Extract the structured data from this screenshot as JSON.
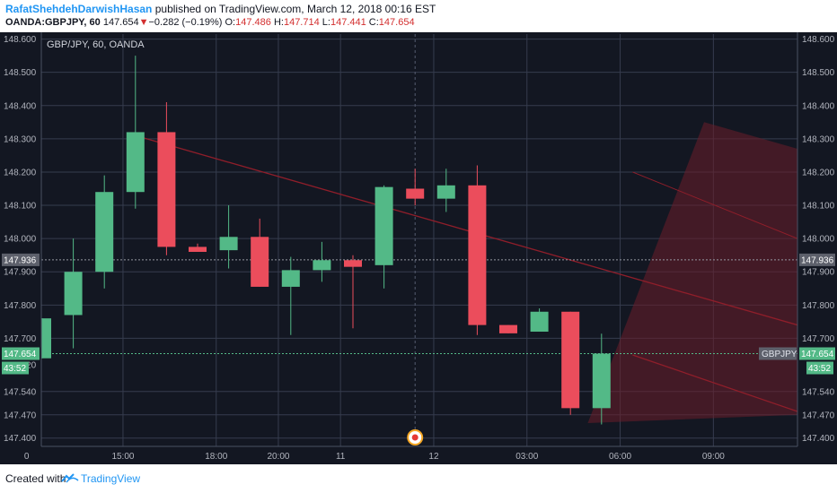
{
  "header": {
    "author": "RafatShehdehDarwishHasan",
    "published": "published on TradingView.com, March 12, 2018 00:16 EST",
    "symbol": "OANDA:GBPJPY, 60",
    "last": "147.654",
    "change": "−0.282 (−0.19%)",
    "o_label": "O:",
    "o": "147.486",
    "h_label": "H:",
    "h": "147.714",
    "l_label": "L:",
    "l": "147.441",
    "c_label": "C:",
    "c": "147.654"
  },
  "chart_data": {
    "type": "candlestick",
    "legend": "GBP/JPY, 60, OANDA",
    "ylim": [
      147.375,
      148.615
    ],
    "y_ticks": [
      "148.600",
      "148.500",
      "148.400",
      "148.300",
      "148.200",
      "148.100",
      "148.000",
      "147.900",
      "147.800",
      "147.700",
      "147.540",
      "147.470",
      "147.400"
    ],
    "left_y_ticks": [
      "148.600",
      "148.500",
      "148.400",
      "148.300",
      "148.200",
      "148.100",
      "148.000",
      "147.900",
      "147.800",
      "147.700",
      "147.620",
      "147.540",
      "147.470",
      "147.400"
    ],
    "x_ticks": [
      {
        "label": "0",
        "slot": -0.5
      },
      {
        "label": "15:00",
        "slot": 2.6
      },
      {
        "label": "18:00",
        "slot": 5.6
      },
      {
        "label": "20:00",
        "slot": 7.6
      },
      {
        "label": "11",
        "slot": 9.6
      },
      {
        "label": "12",
        "slot": 12.6
      },
      {
        "label": "03:00",
        "slot": 15.6
      },
      {
        "label": "06:00",
        "slot": 18.6
      },
      {
        "label": "09:00",
        "slot": 21.6
      }
    ],
    "candles": [
      {
        "o": 147.64,
        "h": 147.76,
        "l": 147.64,
        "c": 147.76
      },
      {
        "o": 147.77,
        "h": 148.0,
        "l": 147.67,
        "c": 147.9
      },
      {
        "o": 147.9,
        "h": 148.19,
        "l": 147.85,
        "c": 148.14
      },
      {
        "o": 148.14,
        "h": 148.55,
        "l": 148.09,
        "c": 148.32
      },
      {
        "o": 148.32,
        "h": 148.41,
        "l": 147.95,
        "c": 147.975
      },
      {
        "o": 147.975,
        "h": 147.985,
        "l": 147.96,
        "c": 147.96
      },
      {
        "o": 147.965,
        "h": 148.1,
        "l": 147.91,
        "c": 148.005
      },
      {
        "o": 148.005,
        "h": 148.06,
        "l": 147.855,
        "c": 147.855
      },
      {
        "o": 147.855,
        "h": 147.945,
        "l": 147.71,
        "c": 147.905
      },
      {
        "o": 147.905,
        "h": 147.99,
        "l": 147.87,
        "c": 147.935
      },
      {
        "o": 147.935,
        "h": 147.95,
        "l": 147.73,
        "c": 147.915
      },
      {
        "o": 147.92,
        "h": 148.16,
        "l": 147.85,
        "c": 148.155
      },
      {
        "o": 148.15,
        "h": 148.21,
        "l": 148.1,
        "c": 148.12
      },
      {
        "o": 148.12,
        "h": 148.21,
        "l": 148.08,
        "c": 148.16
      },
      {
        "o": 148.16,
        "h": 148.22,
        "l": 147.71,
        "c": 147.74
      },
      {
        "o": 147.74,
        "h": 147.74,
        "l": 147.715,
        "c": 147.715
      },
      {
        "o": 147.72,
        "h": 147.79,
        "l": 147.72,
        "c": 147.78
      },
      {
        "o": 147.78,
        "h": 147.78,
        "l": 147.47,
        "c": 147.49
      },
      {
        "o": 147.49,
        "h": 147.714,
        "l": 147.441,
        "c": 147.654
      }
    ],
    "horizontal_lines": [
      {
        "value": 147.936,
        "label": "147.936",
        "style": "dotted-gray"
      },
      {
        "value": 147.654,
        "label": "147.654",
        "style": "dotted-green"
      }
    ],
    "price_labels": {
      "current": "147.654",
      "hline": "147.936",
      "countdown": "43:52",
      "symbol_tag": "GBPJPY"
    },
    "colors": {
      "up": "#53b987",
      "down": "#eb4d5c",
      "background": "#131722",
      "grid": "#363c4e",
      "text": "#b2b5be",
      "trend": "#8f1e2a"
    },
    "event_marker_slot": 12.0
  },
  "footer": {
    "created_with": "Created with",
    "brand": "TradingView"
  }
}
